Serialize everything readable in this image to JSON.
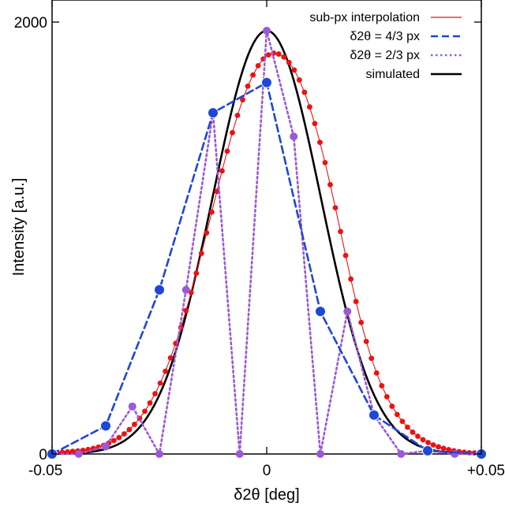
{
  "chart_data": {
    "type": "line",
    "xlabel": "δ2θ [deg]",
    "ylabel": "Intensity [a.u.]",
    "xlim": [
      -0.05,
      0.05
    ],
    "ylim": [
      0,
      2000
    ],
    "xticks": [
      {
        "value": -0.05,
        "label": "-0.05"
      },
      {
        "value": 0,
        "label": "0"
      },
      {
        "value": 0.05,
        "label": "+0.05"
      }
    ],
    "yticks": [
      {
        "value": 0,
        "label": "0"
      },
      {
        "value": 2000,
        "label": "2000"
      }
    ],
    "grid": false,
    "legend_position": "top-right",
    "series": [
      {
        "name": "sub-px interpolation",
        "color": "#ee1111",
        "style": "solid-with-dots",
        "x": [
          -0.05,
          -0.0488,
          -0.0476,
          -0.0464,
          -0.0452,
          -0.044,
          -0.0428,
          -0.0416,
          -0.0404,
          -0.0392,
          -0.038,
          -0.0368,
          -0.0356,
          -0.0344,
          -0.0332,
          -0.032,
          -0.0308,
          -0.0296,
          -0.0284,
          -0.0272,
          -0.026,
          -0.0248,
          -0.0236,
          -0.0224,
          -0.0212,
          -0.02,
          -0.0188,
          -0.0176,
          -0.0164,
          -0.0152,
          -0.014,
          -0.0128,
          -0.0116,
          -0.0104,
          -0.0092,
          -0.008,
          -0.0068,
          -0.0056,
          -0.0044,
          -0.0032,
          -0.002,
          -0.0008,
          0.0004,
          0.0016,
          0.0028,
          0.004,
          0.0052,
          0.0064,
          0.0076,
          0.0088,
          0.01,
          0.0112,
          0.0124,
          0.0136,
          0.0148,
          0.016,
          0.0172,
          0.0184,
          0.0196,
          0.0208,
          0.022,
          0.0232,
          0.0244,
          0.0256,
          0.0268,
          0.028,
          0.0292,
          0.0304,
          0.0316,
          0.0328,
          0.034,
          0.0352,
          0.0364,
          0.0376,
          0.0388,
          0.04,
          0.0412,
          0.0424,
          0.0436,
          0.0448,
          0.046,
          0.0472,
          0.0484,
          0.0496
        ],
        "y": [
          5,
          6,
          8,
          10,
          12,
          14,
          17,
          21,
          26,
          32,
          40,
          50,
          62,
          76,
          93,
          113,
          137,
          165,
          198,
          236,
          279,
          328,
          383,
          445,
          512,
          585,
          664,
          748,
          837,
          929,
          1024,
          1120,
          1216,
          1311,
          1402,
          1488,
          1568,
          1640,
          1703,
          1755,
          1798,
          1829,
          1848,
          1856,
          1852,
          1838,
          1813,
          1778,
          1732,
          1675,
          1607,
          1530,
          1443,
          1349,
          1247,
          1140,
          1030,
          919,
          810,
          706,
          609,
          521,
          443,
          375,
          316,
          265,
          221,
          183,
          151,
          124,
          101,
          82,
          66,
          53,
          42,
          33,
          26,
          20,
          15,
          11,
          8,
          6,
          5,
          4
        ]
      },
      {
        "name": "δ2θ = 4/3 px",
        "color": "#1f47d6",
        "style": "dashed",
        "x": [
          -0.05,
          -0.0375,
          -0.025,
          -0.0125,
          0.0,
          0.0125,
          0.025,
          0.0375,
          0.05
        ],
        "y": [
          0,
          130,
          760,
          1580,
          1720,
          660,
          180,
          15,
          0
        ]
      },
      {
        "name": "δ2θ = 2/3 px",
        "color": "#9b59d6",
        "style": "dotted",
        "x": [
          -0.05,
          -0.0438,
          -0.0375,
          -0.0313,
          -0.025,
          -0.0188,
          -0.0125,
          -0.0063,
          0.0,
          0.0063,
          0.0125,
          0.0188,
          0.025,
          0.0313,
          0.0375,
          0.0438,
          0.05
        ],
        "y": [
          0,
          0,
          35,
          220,
          0,
          760,
          1580,
          0,
          1960,
          1470,
          0,
          660,
          180,
          0,
          15,
          0,
          0
        ]
      },
      {
        "name": "simulated",
        "color": "#000000",
        "style": "solid",
        "function": "gaussian",
        "amplitude": 1960,
        "center": 0.0,
        "sigma": 0.0126
      }
    ]
  }
}
